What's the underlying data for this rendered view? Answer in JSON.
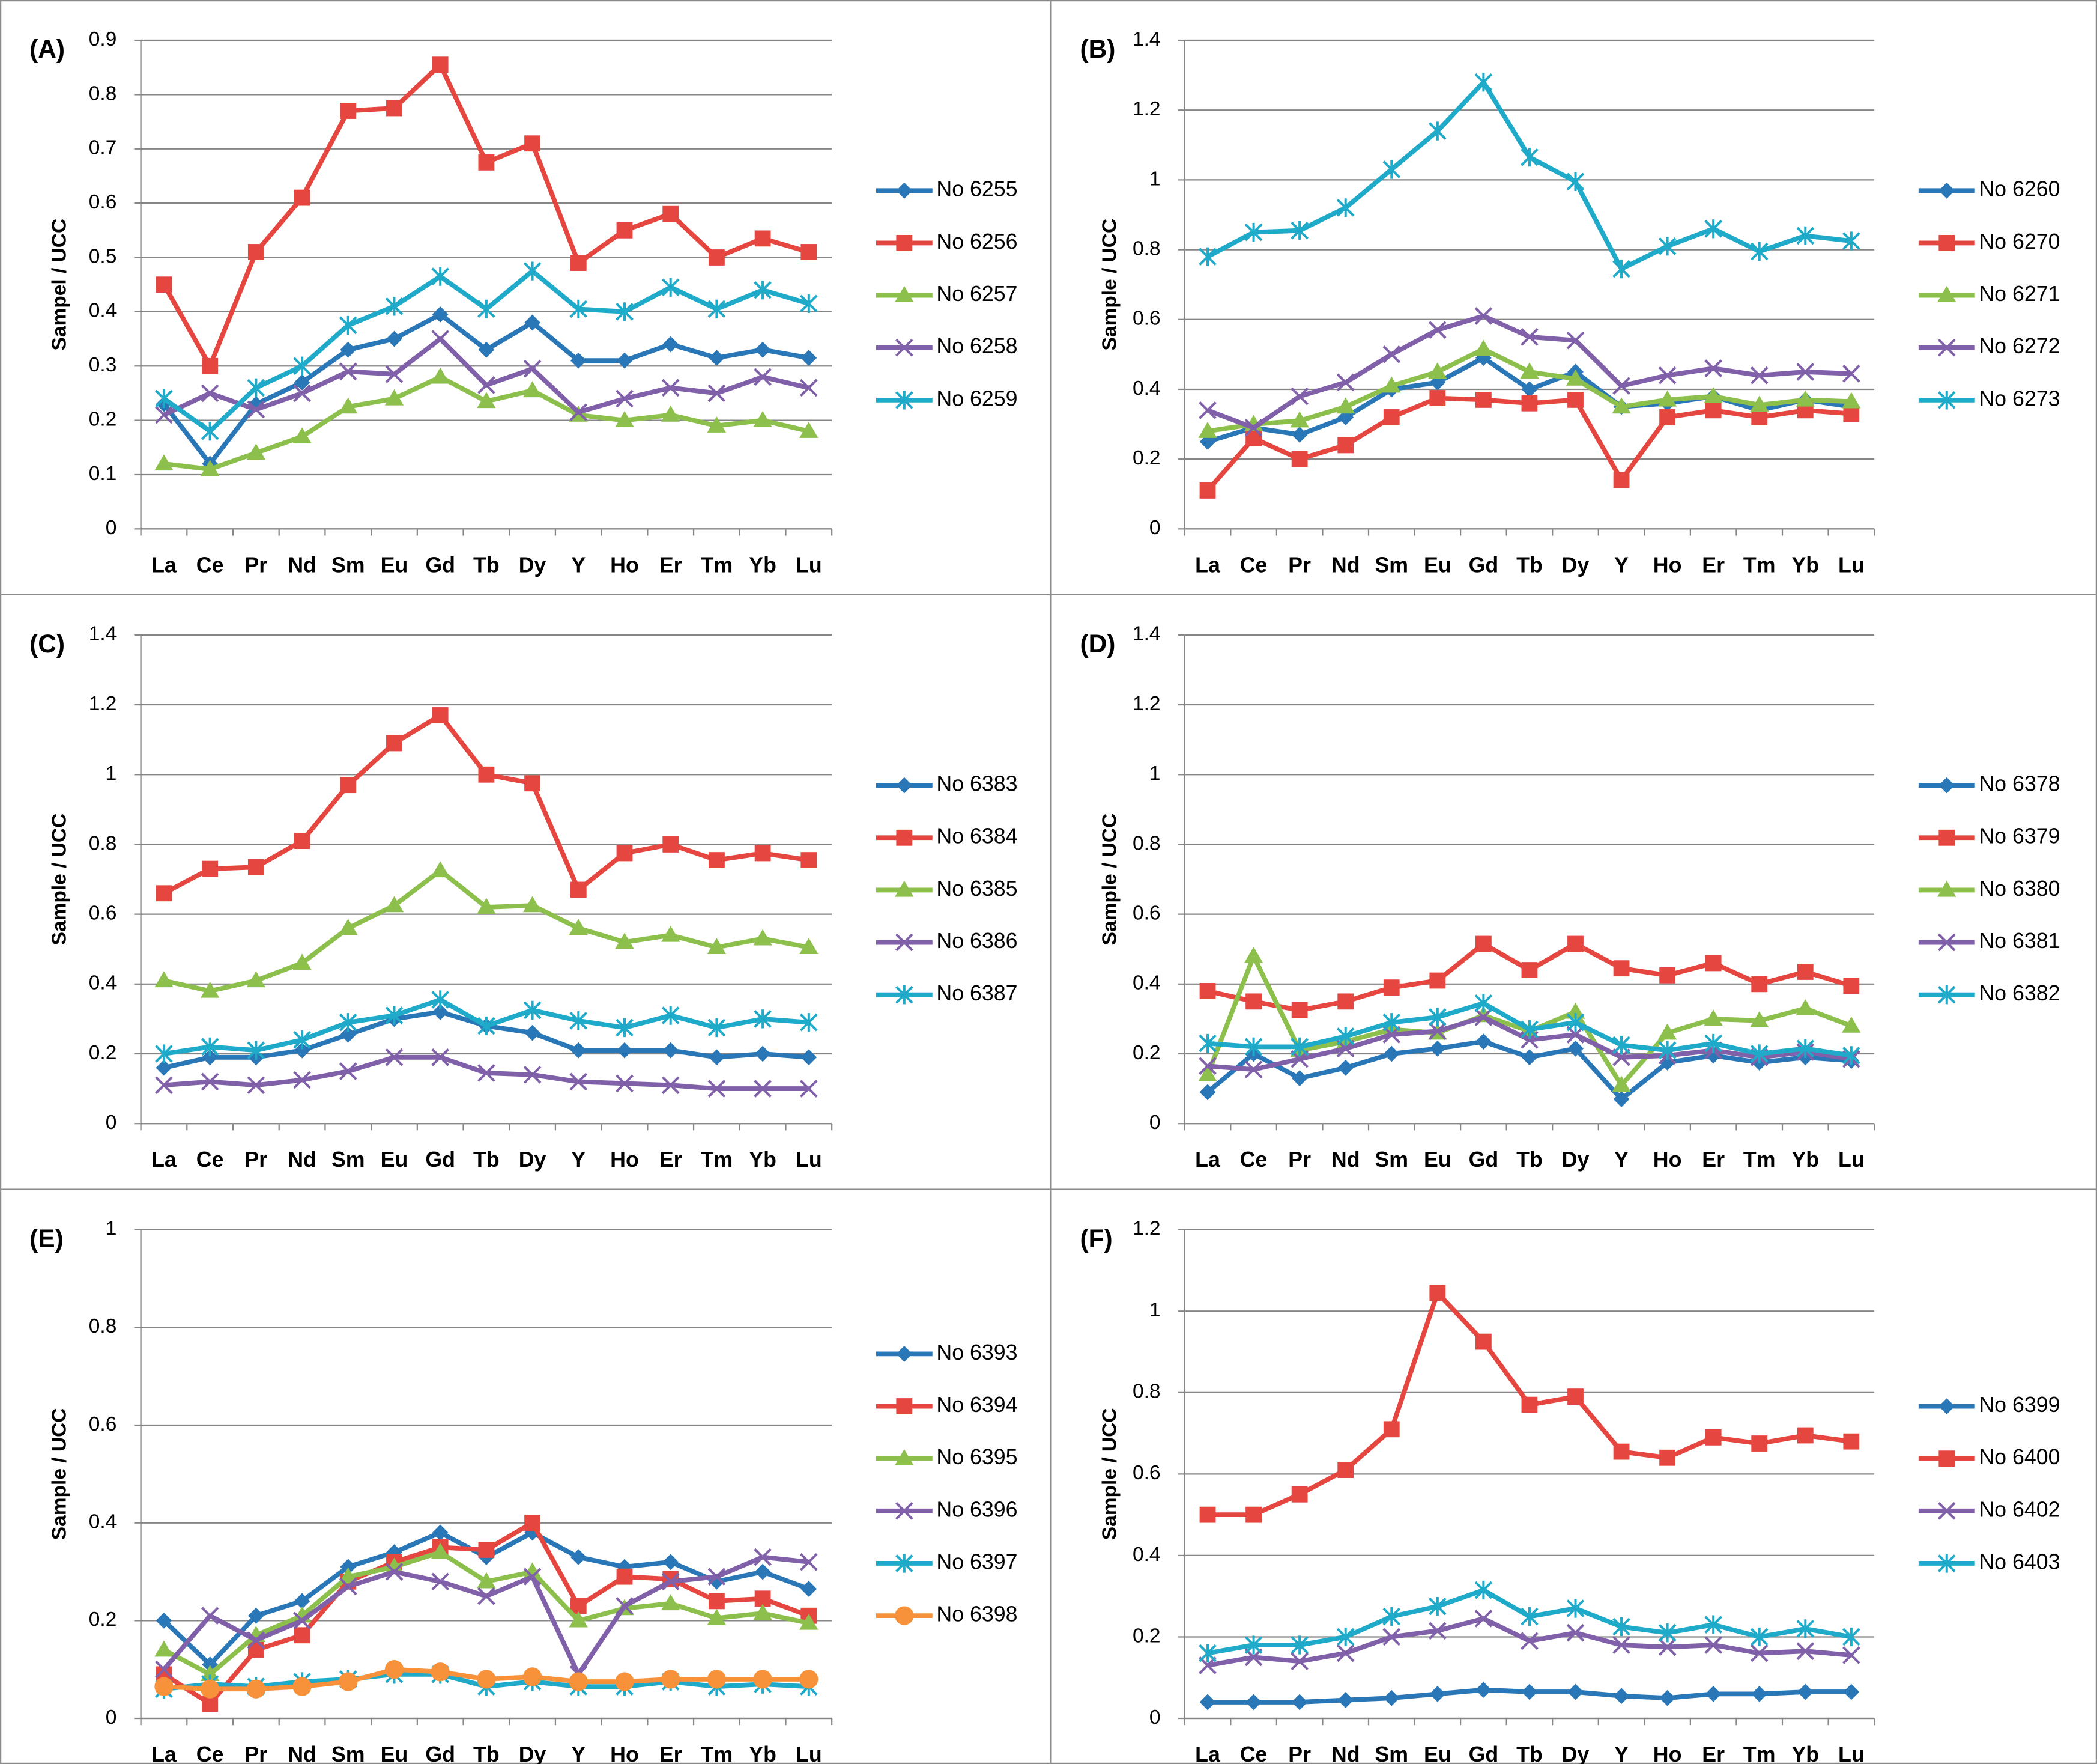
{
  "chart_data": [
    {
      "type": "line",
      "title": "(A)",
      "y_label": "Sampel / UCC",
      "categories": [
        "La",
        "Ce",
        "Pr",
        "Nd",
        "Sm",
        "Eu",
        "Gd",
        "Tb",
        "Dy",
        "Y",
        "Ho",
        "Er",
        "Tm",
        "Yb",
        "Lu"
      ],
      "ylim": [
        0,
        0.9
      ],
      "yticks": [
        0,
        0.1,
        0.2,
        0.3,
        0.4,
        0.5,
        0.6,
        0.7,
        0.8,
        0.9
      ],
      "grid": true,
      "series": [
        {
          "name": "No 6255",
          "color": "#2a77b8",
          "marker": "diamond",
          "values": [
            0.23,
            0.12,
            0.23,
            0.27,
            0.33,
            0.35,
            0.395,
            0.33,
            0.38,
            0.31,
            0.31,
            0.34,
            0.315,
            0.33,
            0.315
          ]
        },
        {
          "name": "No 6256",
          "color": "#e5463f",
          "marker": "square",
          "values": [
            0.45,
            0.3,
            0.51,
            0.61,
            0.77,
            0.775,
            0.855,
            0.675,
            0.71,
            0.49,
            0.55,
            0.58,
            0.5,
            0.535,
            0.51
          ]
        },
        {
          "name": "No 6257",
          "color": "#8cbf4b",
          "marker": "triangle",
          "values": [
            0.12,
            0.11,
            0.14,
            0.17,
            0.225,
            0.24,
            0.28,
            0.235,
            0.255,
            0.21,
            0.2,
            0.21,
            0.19,
            0.2,
            0.18
          ]
        },
        {
          "name": "No 6258",
          "color": "#8060a8",
          "marker": "x",
          "values": [
            0.21,
            0.25,
            0.22,
            0.25,
            0.29,
            0.285,
            0.35,
            0.265,
            0.295,
            0.215,
            0.24,
            0.26,
            0.25,
            0.28,
            0.26
          ]
        },
        {
          "name": "No 6259",
          "color": "#1eaac8",
          "marker": "star",
          "values": [
            0.24,
            0.18,
            0.26,
            0.3,
            0.375,
            0.41,
            0.465,
            0.405,
            0.475,
            0.405,
            0.4,
            0.445,
            0.405,
            0.44,
            0.415
          ]
        }
      ]
    },
    {
      "type": "line",
      "title": "(B)",
      "y_label": "Sample / UCC",
      "categories": [
        "La",
        "Ce",
        "Pr",
        "Nd",
        "Sm",
        "Eu",
        "Gd",
        "Tb",
        "Dy",
        "Y",
        "Ho",
        "Er",
        "Tm",
        "Yb",
        "Lu"
      ],
      "ylim": [
        0,
        1.4
      ],
      "yticks": [
        0,
        0.2,
        0.4,
        0.6,
        0.8,
        1,
        1.2,
        1.4
      ],
      "grid": true,
      "series": [
        {
          "name": "No 6260",
          "color": "#2a77b8",
          "marker": "diamond",
          "values": [
            0.25,
            0.29,
            0.27,
            0.32,
            0.4,
            0.42,
            0.49,
            0.4,
            0.45,
            0.35,
            0.36,
            0.38,
            0.34,
            0.37,
            0.35
          ]
        },
        {
          "name": "No 6270",
          "color": "#e5463f",
          "marker": "square",
          "values": [
            0.11,
            0.26,
            0.2,
            0.24,
            0.32,
            0.375,
            0.37,
            0.36,
            0.37,
            0.14,
            0.32,
            0.34,
            0.32,
            0.34,
            0.33
          ]
        },
        {
          "name": "No 6271",
          "color": "#8cbf4b",
          "marker": "triangle",
          "values": [
            0.28,
            0.3,
            0.31,
            0.35,
            0.41,
            0.45,
            0.515,
            0.45,
            0.43,
            0.35,
            0.37,
            0.38,
            0.355,
            0.37,
            0.365
          ]
        },
        {
          "name": "No 6272",
          "color": "#8060a8",
          "marker": "x",
          "values": [
            0.34,
            0.29,
            0.38,
            0.42,
            0.5,
            0.57,
            0.61,
            0.55,
            0.54,
            0.41,
            0.44,
            0.46,
            0.44,
            0.45,
            0.445
          ]
        },
        {
          "name": "No 6273",
          "color": "#1eaac8",
          "marker": "star",
          "values": [
            0.78,
            0.85,
            0.855,
            0.92,
            1.03,
            1.14,
            1.28,
            1.065,
            0.995,
            0.745,
            0.81,
            0.86,
            0.795,
            0.84,
            0.825
          ]
        }
      ]
    },
    {
      "type": "line",
      "title": "(C)",
      "y_label": "Sample / UCC",
      "categories": [
        "La",
        "Ce",
        "Pr",
        "Nd",
        "Sm",
        "Eu",
        "Gd",
        "Tb",
        "Dy",
        "Y",
        "Ho",
        "Er",
        "Tm",
        "Yb",
        "Lu"
      ],
      "ylim": [
        0,
        1.4
      ],
      "yticks": [
        0,
        0.2,
        0.4,
        0.6,
        0.8,
        1,
        1.2,
        1.4
      ],
      "grid": true,
      "series": [
        {
          "name": "No 6383",
          "color": "#2a77b8",
          "marker": "diamond",
          "values": [
            0.16,
            0.19,
            0.19,
            0.21,
            0.255,
            0.3,
            0.32,
            0.28,
            0.26,
            0.21,
            0.21,
            0.21,
            0.19,
            0.2,
            0.19
          ]
        },
        {
          "name": "No 6384",
          "color": "#e5463f",
          "marker": "square",
          "values": [
            0.66,
            0.73,
            0.735,
            0.81,
            0.97,
            1.09,
            1.17,
            1.0,
            0.975,
            0.67,
            0.775,
            0.8,
            0.755,
            0.775,
            0.755
          ]
        },
        {
          "name": "No 6385",
          "color": "#8cbf4b",
          "marker": "triangle",
          "values": [
            0.41,
            0.38,
            0.41,
            0.46,
            0.56,
            0.625,
            0.725,
            0.62,
            0.625,
            0.56,
            0.52,
            0.54,
            0.505,
            0.53,
            0.505
          ]
        },
        {
          "name": "No 6386",
          "color": "#8060a8",
          "marker": "x",
          "values": [
            0.11,
            0.12,
            0.11,
            0.125,
            0.15,
            0.19,
            0.19,
            0.145,
            0.14,
            0.12,
            0.115,
            0.11,
            0.1,
            0.1,
            0.1
          ]
        },
        {
          "name": "No 6387",
          "color": "#1eaac8",
          "marker": "star",
          "values": [
            0.2,
            0.22,
            0.21,
            0.24,
            0.29,
            0.31,
            0.355,
            0.28,
            0.325,
            0.295,
            0.275,
            0.31,
            0.275,
            0.3,
            0.29
          ]
        }
      ]
    },
    {
      "type": "line",
      "title": "(D)",
      "y_label": "Sample / UCC",
      "categories": [
        "La",
        "Ce",
        "Pr",
        "Nd",
        "Sm",
        "Eu",
        "Gd",
        "Tb",
        "Dy",
        "Y",
        "Ho",
        "Er",
        "Tm",
        "Yb",
        "Lu"
      ],
      "ylim": [
        0,
        1.4
      ],
      "yticks": [
        0,
        0.2,
        0.4,
        0.6,
        0.8,
        1,
        1.2,
        1.4
      ],
      "grid": true,
      "series": [
        {
          "name": "No 6378",
          "color": "#2a77b8",
          "marker": "diamond",
          "values": [
            0.09,
            0.2,
            0.13,
            0.16,
            0.2,
            0.215,
            0.235,
            0.19,
            0.215,
            0.07,
            0.175,
            0.195,
            0.175,
            0.19,
            0.18
          ]
        },
        {
          "name": "No 6379",
          "color": "#e5463f",
          "marker": "square",
          "values": [
            0.38,
            0.35,
            0.325,
            0.35,
            0.39,
            0.41,
            0.515,
            0.44,
            0.515,
            0.445,
            0.425,
            0.46,
            0.4,
            0.435,
            0.395
          ]
        },
        {
          "name": "No 6380",
          "color": "#8cbf4b",
          "marker": "triangle",
          "values": [
            0.14,
            0.48,
            0.21,
            0.235,
            0.27,
            0.26,
            0.31,
            0.265,
            0.32,
            0.11,
            0.26,
            0.3,
            0.295,
            0.33,
            0.28
          ]
        },
        {
          "name": "No 6381",
          "color": "#8060a8",
          "marker": "x",
          "values": [
            0.165,
            0.155,
            0.185,
            0.215,
            0.255,
            0.265,
            0.305,
            0.24,
            0.255,
            0.19,
            0.195,
            0.21,
            0.19,
            0.205,
            0.185
          ]
        },
        {
          "name": "No 6382",
          "color": "#1eaac8",
          "marker": "star",
          "values": [
            0.23,
            0.22,
            0.22,
            0.25,
            0.29,
            0.305,
            0.345,
            0.27,
            0.29,
            0.225,
            0.21,
            0.23,
            0.2,
            0.215,
            0.195
          ]
        }
      ]
    },
    {
      "type": "line",
      "title": "(E)",
      "y_label": "Sample / UCC",
      "categories": [
        "La",
        "Ce",
        "Pr",
        "Nd",
        "Sm",
        "Eu",
        "Gd",
        "Tb",
        "Dy",
        "Y",
        "Ho",
        "Er",
        "Tm",
        "Yb",
        "Lu"
      ],
      "ylim": [
        0,
        1
      ],
      "yticks": [
        0,
        0.2,
        0.4,
        0.6,
        0.8,
        1
      ],
      "grid": true,
      "series": [
        {
          "name": "No 6393",
          "color": "#2a77b8",
          "marker": "diamond",
          "values": [
            0.2,
            0.11,
            0.21,
            0.24,
            0.31,
            0.34,
            0.38,
            0.33,
            0.38,
            0.33,
            0.31,
            0.32,
            0.28,
            0.3,
            0.265
          ]
        },
        {
          "name": "No 6394",
          "color": "#e5463f",
          "marker": "square",
          "values": [
            0.09,
            0.03,
            0.14,
            0.17,
            0.28,
            0.32,
            0.35,
            0.345,
            0.4,
            0.23,
            0.29,
            0.285,
            0.24,
            0.245,
            0.21
          ]
        },
        {
          "name": "No 6395",
          "color": "#8cbf4b",
          "marker": "triangle",
          "values": [
            0.14,
            0.09,
            0.17,
            0.21,
            0.29,
            0.31,
            0.34,
            0.28,
            0.3,
            0.2,
            0.225,
            0.235,
            0.205,
            0.215,
            0.195
          ]
        },
        {
          "name": "No 6396",
          "color": "#8060a8",
          "marker": "x",
          "values": [
            0.1,
            0.21,
            0.16,
            0.2,
            0.27,
            0.3,
            0.28,
            0.25,
            0.29,
            0.09,
            0.23,
            0.28,
            0.29,
            0.33,
            0.32
          ]
        },
        {
          "name": "No 6397",
          "color": "#1eaac8",
          "marker": "star",
          "values": [
            0.06,
            0.07,
            0.065,
            0.075,
            0.08,
            0.09,
            0.09,
            0.065,
            0.075,
            0.065,
            0.065,
            0.075,
            0.065,
            0.07,
            0.065
          ]
        },
        {
          "name": "No 6398",
          "color": "#f7923a",
          "marker": "circle",
          "values": [
            0.065,
            0.06,
            0.06,
            0.065,
            0.075,
            0.1,
            0.095,
            0.08,
            0.085,
            0.075,
            0.075,
            0.08,
            0.08,
            0.08,
            0.08
          ]
        }
      ]
    },
    {
      "type": "line",
      "title": "(F)",
      "y_label": "Sample / UCC",
      "categories": [
        "La",
        "Ce",
        "Pr",
        "Nd",
        "Sm",
        "Eu",
        "Gd",
        "Tb",
        "Dy",
        "Y",
        "Ho",
        "Er",
        "Tm",
        "Yb",
        "Lu"
      ],
      "ylim": [
        0,
        1.2
      ],
      "yticks": [
        0,
        0.2,
        0.4,
        0.6,
        0.8,
        1,
        1.2
      ],
      "grid": true,
      "series": [
        {
          "name": "No 6399",
          "color": "#2a77b8",
          "marker": "diamond",
          "values": [
            0.04,
            0.04,
            0.04,
            0.045,
            0.05,
            0.06,
            0.07,
            0.065,
            0.065,
            0.055,
            0.05,
            0.06,
            0.06,
            0.065,
            0.065
          ]
        },
        {
          "name": "No 6400",
          "color": "#e5463f",
          "marker": "square",
          "values": [
            0.5,
            0.5,
            0.55,
            0.61,
            0.71,
            1.045,
            0.925,
            0.77,
            0.79,
            0.655,
            0.64,
            0.69,
            0.675,
            0.695,
            0.68
          ]
        },
        {
          "name": "No 6402",
          "color": "#8060a8",
          "marker": "x",
          "values": [
            0.13,
            0.15,
            0.14,
            0.16,
            0.2,
            0.215,
            0.245,
            0.19,
            0.21,
            0.18,
            0.175,
            0.18,
            0.16,
            0.165,
            0.155
          ]
        },
        {
          "name": "No 6403",
          "color": "#1eaac8",
          "marker": "star",
          "values": [
            0.16,
            0.18,
            0.18,
            0.2,
            0.25,
            0.275,
            0.315,
            0.25,
            0.27,
            0.225,
            0.21,
            0.23,
            0.2,
            0.22,
            0.2
          ]
        }
      ]
    }
  ]
}
